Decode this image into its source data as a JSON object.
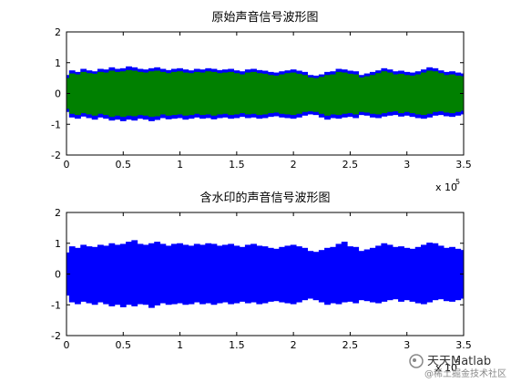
{
  "chart_data": [
    {
      "type": "area",
      "title": "原始声音信号波形图",
      "x": [
        0,
        0.05,
        0.1,
        0.15,
        0.2,
        0.25,
        0.3,
        0.35,
        0.4,
        0.45,
        0.5,
        0.55,
        0.6,
        0.65,
        0.7,
        0.75,
        0.8,
        0.85,
        0.9,
        0.95,
        1,
        1.05,
        1.1,
        1.15,
        1.2,
        1.25,
        1.3,
        1.35,
        1.4,
        1.45,
        1.5,
        1.55,
        1.6,
        1.65,
        1.7,
        1.75,
        1.8,
        1.85,
        1.9,
        1.95,
        2,
        2.05,
        2.1,
        2.15,
        2.2,
        2.25,
        2.3,
        2.35,
        2.4,
        2.45,
        2.5,
        2.55,
        2.6,
        2.65,
        2.7,
        2.75,
        2.8,
        2.85,
        2.9,
        2.95,
        3,
        3.05,
        3.1,
        3.15,
        3.2,
        3.25,
        3.3,
        3.35,
        3.4,
        3.45,
        3.5
      ],
      "series": [
        {
          "color": "#0000ff",
          "upper": [
            0.6,
            0.75,
            0.7,
            0.8,
            0.75,
            0.72,
            0.8,
            0.78,
            0.85,
            0.8,
            0.82,
            0.88,
            0.85,
            0.8,
            0.78,
            0.82,
            0.85,
            0.8,
            0.76,
            0.8,
            0.82,
            0.78,
            0.75,
            0.8,
            0.78,
            0.82,
            0.8,
            0.76,
            0.78,
            0.8,
            0.75,
            0.72,
            0.78,
            0.8,
            0.76,
            0.74,
            0.7,
            0.68,
            0.72,
            0.75,
            0.78,
            0.74,
            0.7,
            0.6,
            0.58,
            0.62,
            0.7,
            0.72,
            0.8,
            0.78,
            0.74,
            0.72,
            0.6,
            0.65,
            0.7,
            0.75,
            0.82,
            0.78,
            0.72,
            0.74,
            0.7,
            0.68,
            0.72,
            0.78,
            0.85,
            0.82,
            0.75,
            0.7,
            0.72,
            0.68,
            0.65
          ],
          "lower": [
            -0.6,
            -0.78,
            -0.82,
            -0.75,
            -0.8,
            -0.85,
            -0.78,
            -0.82,
            -0.88,
            -0.85,
            -0.9,
            -0.85,
            -0.88,
            -0.82,
            -0.85,
            -0.9,
            -0.86,
            -0.8,
            -0.84,
            -0.82,
            -0.8,
            -0.85,
            -0.82,
            -0.78,
            -0.82,
            -0.8,
            -0.84,
            -0.8,
            -0.78,
            -0.82,
            -0.8,
            -0.76,
            -0.8,
            -0.78,
            -0.82,
            -0.8,
            -0.76,
            -0.74,
            -0.78,
            -0.8,
            -0.82,
            -0.78,
            -0.72,
            -0.68,
            -0.7,
            -0.78,
            -0.85,
            -0.8,
            -0.82,
            -0.78,
            -0.76,
            -0.8,
            -0.7,
            -0.72,
            -0.78,
            -0.8,
            -0.75,
            -0.72,
            -0.7,
            -0.75,
            -0.72,
            -0.76,
            -0.8,
            -0.82,
            -0.78,
            -0.72,
            -0.7,
            -0.74,
            -0.76,
            -0.72,
            -0.68
          ]
        },
        {
          "color": "#008000",
          "upper": [
            0.5,
            0.65,
            0.62,
            0.7,
            0.66,
            0.64,
            0.7,
            0.68,
            0.74,
            0.7,
            0.72,
            0.76,
            0.74,
            0.7,
            0.68,
            0.72,
            0.74,
            0.7,
            0.66,
            0.7,
            0.72,
            0.68,
            0.66,
            0.7,
            0.68,
            0.72,
            0.7,
            0.66,
            0.68,
            0.7,
            0.66,
            0.62,
            0.68,
            0.7,
            0.66,
            0.64,
            0.6,
            0.58,
            0.62,
            0.66,
            0.68,
            0.64,
            0.6,
            0.52,
            0.5,
            0.54,
            0.6,
            0.62,
            0.7,
            0.68,
            0.64,
            0.62,
            0.52,
            0.56,
            0.6,
            0.66,
            0.72,
            0.68,
            0.62,
            0.64,
            0.6,
            0.58,
            0.62,
            0.68,
            0.74,
            0.72,
            0.66,
            0.6,
            0.62,
            0.58,
            0.56
          ],
          "lower": [
            -0.5,
            -0.66,
            -0.7,
            -0.64,
            -0.68,
            -0.72,
            -0.66,
            -0.7,
            -0.76,
            -0.72,
            -0.76,
            -0.72,
            -0.74,
            -0.7,
            -0.72,
            -0.76,
            -0.74,
            -0.68,
            -0.72,
            -0.7,
            -0.68,
            -0.72,
            -0.7,
            -0.66,
            -0.7,
            -0.68,
            -0.72,
            -0.68,
            -0.66,
            -0.7,
            -0.68,
            -0.64,
            -0.68,
            -0.66,
            -0.7,
            -0.68,
            -0.64,
            -0.62,
            -0.66,
            -0.68,
            -0.7,
            -0.66,
            -0.6,
            -0.58,
            -0.6,
            -0.66,
            -0.72,
            -0.68,
            -0.7,
            -0.66,
            -0.64,
            -0.68,
            -0.6,
            -0.62,
            -0.66,
            -0.68,
            -0.64,
            -0.6,
            -0.58,
            -0.64,
            -0.6,
            -0.64,
            -0.68,
            -0.7,
            -0.66,
            -0.6,
            -0.58,
            -0.62,
            -0.64,
            -0.6,
            -0.56
          ]
        }
      ],
      "xlim": [
        0,
        3.5
      ],
      "xticks": [
        0,
        0.5,
        1,
        1.5,
        2,
        2.5,
        3,
        3.5
      ],
      "ylim": [
        -2,
        2
      ],
      "yticks": [
        -2,
        -1,
        0,
        1,
        2
      ],
      "x_scale_label": {
        "text": "x 10",
        "exponent": "5"
      }
    },
    {
      "type": "area",
      "title": "含水印的声音信号波形图",
      "x": [
        0,
        0.05,
        0.1,
        0.15,
        0.2,
        0.25,
        0.3,
        0.35,
        0.4,
        0.45,
        0.5,
        0.55,
        0.6,
        0.65,
        0.7,
        0.75,
        0.8,
        0.85,
        0.9,
        0.95,
        1,
        1.05,
        1.1,
        1.15,
        1.2,
        1.25,
        1.3,
        1.35,
        1.4,
        1.45,
        1.5,
        1.55,
        1.6,
        1.65,
        1.7,
        1.75,
        1.8,
        1.85,
        1.9,
        1.95,
        2,
        2.05,
        2.1,
        2.15,
        2.2,
        2.25,
        2.3,
        2.35,
        2.4,
        2.45,
        2.5,
        2.55,
        2.6,
        2.65,
        2.7,
        2.75,
        2.8,
        2.85,
        2.9,
        2.95,
        3,
        3.05,
        3.1,
        3.15,
        3.2,
        3.25,
        3.3,
        3.35,
        3.4,
        3.45,
        3.5
      ],
      "series": [
        {
          "color": "#0000ff",
          "upper": [
            0.7,
            0.9,
            0.85,
            0.95,
            0.9,
            0.88,
            0.95,
            0.92,
            1.0,
            0.95,
            0.98,
            1.05,
            1.1,
            0.98,
            0.95,
            1.0,
            1.05,
            0.98,
            0.92,
            0.98,
            1.0,
            0.95,
            0.92,
            0.98,
            0.95,
            1.0,
            0.98,
            0.92,
            0.95,
            0.98,
            0.92,
            0.88,
            0.95,
            0.98,
            0.92,
            0.9,
            0.85,
            0.82,
            0.88,
            0.92,
            0.95,
            0.9,
            0.85,
            0.75,
            0.72,
            0.78,
            0.85,
            0.88,
            0.98,
            1.05,
            0.9,
            0.88,
            0.75,
            0.8,
            0.85,
            0.92,
            1.0,
            0.95,
            0.88,
            0.9,
            0.85,
            0.82,
            0.88,
            0.95,
            1.02,
            1.0,
            0.92,
            0.85,
            0.88,
            0.82,
            0.78
          ],
          "lower": [
            -0.7,
            -0.92,
            -0.98,
            -0.9,
            -0.95,
            -1.0,
            -0.92,
            -0.98,
            -1.05,
            -1.0,
            -1.08,
            -1.0,
            -1.05,
            -0.98,
            -1.0,
            -1.1,
            -1.02,
            -0.95,
            -1.0,
            -0.98,
            -0.95,
            -1.0,
            -0.98,
            -0.92,
            -0.98,
            -0.95,
            -1.0,
            -0.95,
            -0.92,
            -0.98,
            -0.95,
            -0.9,
            -0.95,
            -0.92,
            -0.98,
            -0.95,
            -0.9,
            -0.88,
            -0.92,
            -0.95,
            -0.98,
            -0.92,
            -0.85,
            -0.8,
            -0.85,
            -0.92,
            -1.0,
            -0.95,
            -0.98,
            -0.92,
            -0.9,
            -0.95,
            -0.85,
            -0.88,
            -0.92,
            -0.95,
            -0.9,
            -0.85,
            -0.82,
            -0.9,
            -0.85,
            -0.9,
            -0.95,
            -0.98,
            -0.92,
            -0.85,
            -0.82,
            -0.88,
            -0.9,
            -0.85,
            -0.8
          ]
        }
      ],
      "xlim": [
        0,
        3.5
      ],
      "xticks": [
        0,
        0.5,
        1,
        1.5,
        2,
        2.5,
        3,
        3.5
      ],
      "ylim": [
        -2,
        2
      ],
      "yticks": [
        -2,
        -1,
        0,
        1,
        2
      ],
      "x_scale_label": {
        "text": "x 10",
        "exponent": "5"
      }
    }
  ],
  "watermark": {
    "title": "天天Matlab",
    "source": "@稀土掘金技术社区"
  }
}
